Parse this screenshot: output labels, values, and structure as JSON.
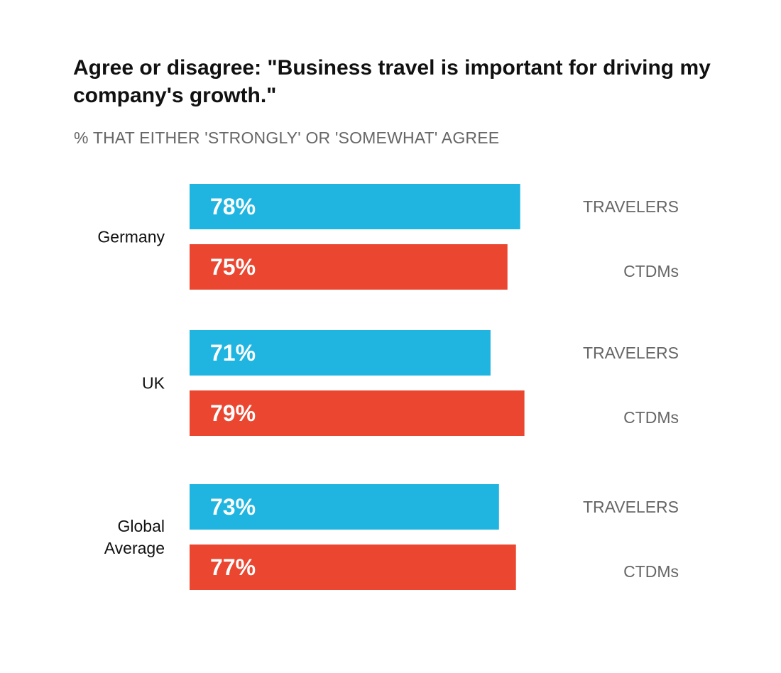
{
  "chart_data": {
    "type": "bar",
    "orientation": "horizontal",
    "title": "Agree or disagree: \"Business travel is important for driving my company's growth.\"",
    "subtitle": "% THAT EITHER 'STRONGLY' OR 'SOMEWHAT' AGREE",
    "categories": [
      [
        "Germany"
      ],
      [
        "UK"
      ],
      [
        "Global",
        "Average"
      ]
    ],
    "series": [
      {
        "name": "TRAVELERS",
        "color": "#1fb5e0",
        "values": [
          78,
          71,
          73
        ]
      },
      {
        "name": "CTDMs",
        "color": "#ea4630",
        "values": [
          75,
          79,
          77
        ]
      }
    ],
    "value_suffix": "%",
    "xlim": [
      0,
      100
    ],
    "grid": false,
    "legend": "right of each bar"
  }
}
